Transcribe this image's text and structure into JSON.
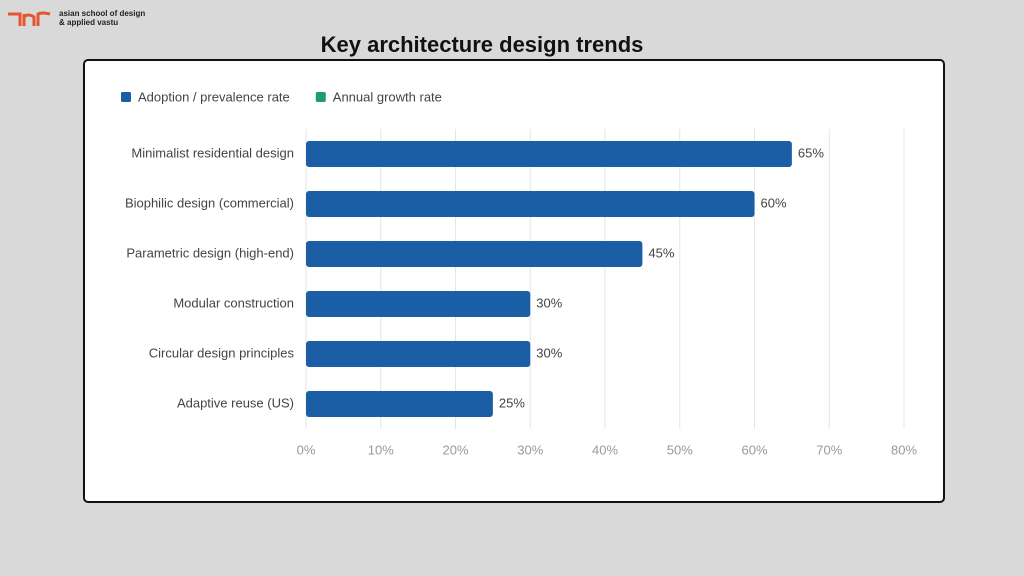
{
  "logo": {
    "lines": [
      "asian school of design",
      "& applied vastu"
    ]
  },
  "chart_data": {
    "type": "bar",
    "horizontal": true,
    "title": "Key architecture design trends",
    "categories": [
      "Minimalist residential design",
      "Biophilic design (commercial)",
      "Parametric design (high-end)",
      "Modular construction",
      "Circular design principles",
      "Adaptive reuse (US)"
    ],
    "series": [
      {
        "name": "Adoption / prevalence rate",
        "color": "#1b5ea6",
        "values": [
          65,
          60,
          45,
          30,
          30,
          25
        ],
        "value_labels": [
          "65%",
          "60%",
          "45%",
          "30%",
          "30%",
          "25%"
        ]
      },
      {
        "name": "Annual growth rate",
        "color": "#1e9e6f",
        "values": [
          null,
          null,
          null,
          null,
          null,
          null
        ]
      }
    ],
    "xlim": [
      0,
      80
    ],
    "xticks": [
      {
        "value": 0,
        "label": "0%"
      },
      {
        "value": 10,
        "label": "10%"
      },
      {
        "value": 20,
        "label": "20%"
      },
      {
        "value": 30,
        "label": "30%"
      },
      {
        "value": 40,
        "label": "40%"
      },
      {
        "value": 50,
        "label": "50%"
      },
      {
        "value": 60,
        "label": "60%"
      },
      {
        "value": 70,
        "label": "70%"
      },
      {
        "value": 80,
        "label": "80%"
      }
    ],
    "grid": true,
    "legend": "top-left"
  }
}
